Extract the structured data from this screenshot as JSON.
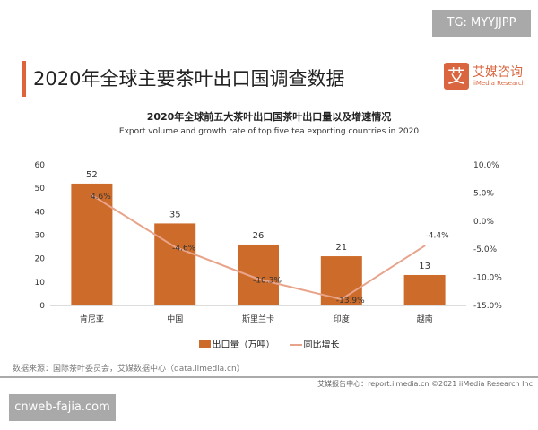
{
  "watermark_top": "TG: MYYJJPP",
  "page_title": "2020年全球主要茶叶出口国调查数据",
  "logo": {
    "cn": "艾媒咨询",
    "en": "iiMedia Research",
    "mark": "艾"
  },
  "source": "数据来源：国际茶叶委员会，艾媒数据中心（data.iimedia.cn）",
  "footer": "艾媒报告中心：report.iimedia.cn   ©2021  iiMedia Research  Inc",
  "watermark_bottom": "cnweb-fajia.com",
  "chart_data": {
    "type": "bar+line",
    "title": "2020年全球前五大茶叶出口国茶叶出口量以及增速情况",
    "subtitle": "Export volume and growth rate of top five tea exporting countries in 2020",
    "categories": [
      "肯尼亚",
      "中国",
      "斯里兰卡",
      "印度",
      "越南"
    ],
    "series": [
      {
        "name": "出口量（万吨）",
        "type": "bar",
        "axis": "left",
        "values": [
          52,
          35,
          26,
          21,
          13
        ],
        "labels": [
          "52",
          "35",
          "26",
          "21",
          "13"
        ],
        "color": "#cd6b2a"
      },
      {
        "name": "同比增长",
        "type": "line",
        "axis": "right",
        "values": [
          4.6,
          -4.6,
          -10.3,
          -13.9,
          -4.4
        ],
        "labels": [
          "4.6%",
          "-4.6%",
          "-10.3%",
          "-13.9%",
          "-4.4%"
        ],
        "color": "#e8a48a"
      }
    ],
    "ylim_left": [
      0,
      60
    ],
    "yticks_left": [
      "0",
      "10",
      "20",
      "30",
      "40",
      "50",
      "60"
    ],
    "ylim_right": [
      -15,
      10
    ],
    "yticks_right": [
      "-15.0%",
      "-10.0%",
      "-5.0%",
      "0.0%",
      "5.0%",
      "10.0%"
    ],
    "grid": false,
    "legend": "bottom"
  }
}
